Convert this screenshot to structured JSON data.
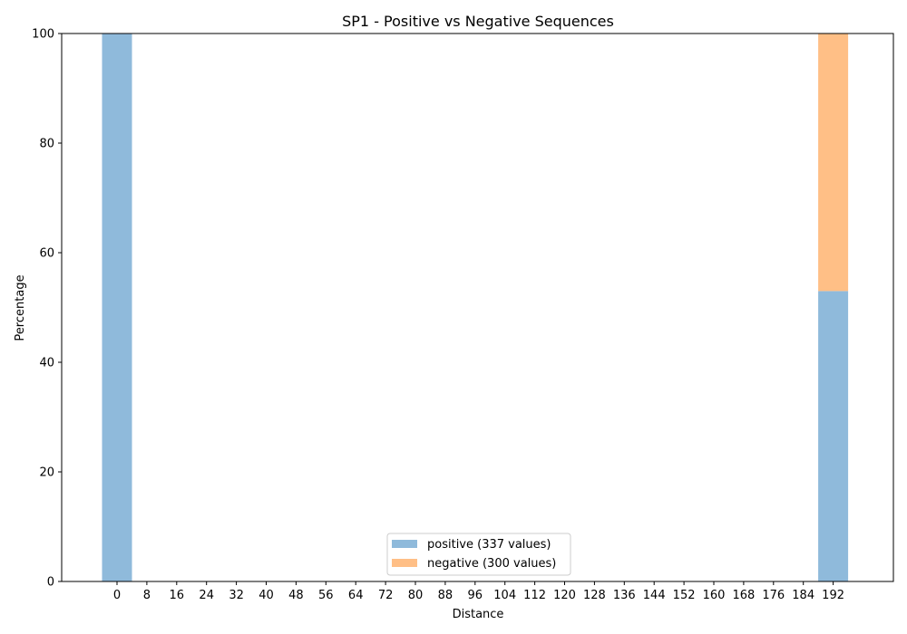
{
  "chart_data": {
    "type": "bar",
    "stacked": true,
    "title": "SP1 - Positive vs Negative Sequences",
    "xlabel": "Distance",
    "ylabel": "Percentage",
    "ylim": [
      0,
      100
    ],
    "yticks": [
      0,
      20,
      40,
      60,
      80,
      100
    ],
    "categories": [
      0,
      8,
      16,
      24,
      32,
      40,
      48,
      56,
      64,
      72,
      80,
      88,
      96,
      104,
      112,
      120,
      128,
      136,
      144,
      152,
      160,
      168,
      176,
      184,
      192
    ],
    "series": [
      {
        "name": "positive (337 values)",
        "color": "#8fbadb",
        "values": [
          100,
          0,
          0,
          0,
          0,
          0,
          0,
          0,
          0,
          0,
          0,
          0,
          0,
          0,
          0,
          0,
          0,
          0,
          0,
          0,
          0,
          0,
          0,
          0,
          53
        ]
      },
      {
        "name": "negative (300 values)",
        "color": "#ffbf86",
        "values": [
          0,
          0,
          0,
          0,
          0,
          0,
          0,
          0,
          0,
          0,
          0,
          0,
          0,
          0,
          0,
          0,
          0,
          0,
          0,
          0,
          0,
          0,
          0,
          0,
          47
        ]
      }
    ],
    "legend_position": "bottom-center",
    "grid": false
  }
}
